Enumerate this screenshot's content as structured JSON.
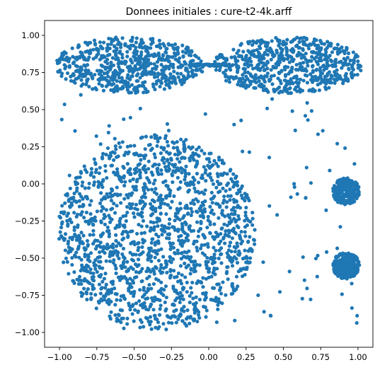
{
  "chart_data": {
    "type": "scatter",
    "title": "Donnees initiales : cure-t2-4k.arff",
    "xlabel": "",
    "ylabel": "",
    "xlim": [
      -1.1,
      1.1
    ],
    "ylim": [
      -1.1,
      1.1
    ],
    "x_ticks": [
      -1.0,
      -0.75,
      -0.5,
      -0.25,
      0.0,
      0.25,
      0.5,
      0.75,
      1.0
    ],
    "y_ticks": [
      -1.0,
      -0.75,
      -0.5,
      -0.25,
      0.0,
      0.25,
      0.5,
      0.75,
      1.0
    ],
    "x_tick_labels": [
      "−1.00",
      "−0.75",
      "−0.50",
      "−0.25",
      "0.00",
      "0.25",
      "0.50",
      "0.75",
      "1.00"
    ],
    "y_tick_labels": [
      "−1.00",
      "−0.75",
      "−0.50",
      "−0.25",
      "0.00",
      "0.25",
      "0.50",
      "0.75",
      "1.00"
    ],
    "grid": false,
    "legend": false,
    "series": [
      {
        "color": "#1f77b4",
        "clusters": [
          {
            "shape": "ellipse",
            "center": [
              -0.53,
              0.8
            ],
            "radii": [
              0.5,
              0.19
            ],
            "count": 640
          },
          {
            "shape": "ellipse",
            "center": [
              0.53,
              0.8
            ],
            "radii": [
              0.5,
              0.19
            ],
            "count": 640
          },
          {
            "shape": "bridge",
            "x_range": [
              -0.12,
              0.14
            ],
            "y": 0.8,
            "count": 60
          },
          {
            "shape": "disc",
            "center": [
              -0.35,
              -0.33
            ],
            "radius": 0.66,
            "count": 1550
          },
          {
            "shape": "disc",
            "center": [
              0.92,
              -0.05
            ],
            "radius": 0.09,
            "count": 260
          },
          {
            "shape": "disc",
            "center": [
              0.92,
              -0.55
            ],
            "radius": 0.09,
            "count": 260
          },
          {
            "shape": "noise",
            "x_range": [
              -1.0,
              1.0
            ],
            "y_range": [
              -1.0,
              0.6
            ],
            "count": 130
          }
        ]
      }
    ]
  }
}
